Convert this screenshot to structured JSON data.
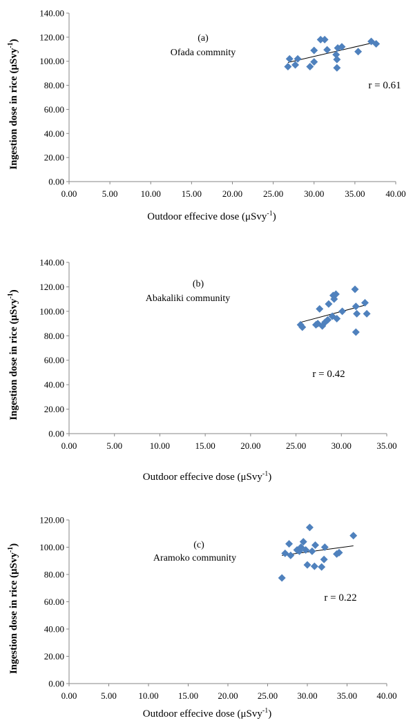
{
  "charts": [
    {
      "panel": "(a)",
      "community": "Ofada commnity",
      "r_label": "r = 0.61",
      "xlabel": "Outdoor effecive dose (μSvy",
      "ylabel": "Ingestion dose in rice (μSvy",
      "unit_sup": "-1",
      "unit_close": ")",
      "xticks": [
        "0.00",
        "5.00",
        "10.00",
        "15.00",
        "20.00",
        "25.00",
        "30.00",
        "35.00",
        "40.00"
      ],
      "yticks": [
        "0.00",
        "20.00",
        "40.00",
        "60.00",
        "80.00",
        "100.00",
        "120.00",
        "140.00"
      ]
    },
    {
      "panel": "(b)",
      "community": "Abakaliki community",
      "r_label": "r = 0.42",
      "xlabel": "Outdoor effecive dose (μSvy",
      "ylabel": "Ingestion dose in rice (μSvy",
      "unit_sup": "-1",
      "unit_close": ")",
      "xticks": [
        "0.00",
        "5.00",
        "10.00",
        "15.00",
        "20.00",
        "25.00",
        "30.00",
        "35.00"
      ],
      "yticks": [
        "0.00",
        "20.00",
        "40.00",
        "60.00",
        "80.00",
        "100.00",
        "120.00",
        "140.00"
      ]
    },
    {
      "panel": "(c)",
      "community": "Aramoko community",
      "r_label": "r = 0.22",
      "xlabel": "Outdoor effecive dose (μSvy",
      "ylabel": "Ingestion dose in rice (μSvy",
      "unit_sup": "-1",
      "unit_close": ")",
      "xticks": [
        "0.00",
        "5.00",
        "10.00",
        "15.00",
        "20.00",
        "25.00",
        "30.00",
        "35.00",
        "40.00"
      ],
      "yticks": [
        "0.00",
        "20.00",
        "40.00",
        "60.00",
        "80.00",
        "100.00",
        "120.00"
      ]
    }
  ],
  "chart_data": [
    {
      "type": "scatter",
      "title": "",
      "xlabel": "Outdoor effecive dose (μSvy-1)",
      "ylabel": "Ingestion dose in rice (μSvy-1)",
      "xlim": [
        0,
        40
      ],
      "ylim": [
        0,
        140
      ],
      "grid": false,
      "marker_color": "#4f81bd",
      "trendline": {
        "x": [
          26.8,
          37.6
        ],
        "y": [
          99,
          116
        ]
      },
      "annotations": [
        "(a)",
        "Ofada commnity",
        "r = 0.61"
      ],
      "points": [
        [
          26.8,
          95.5
        ],
        [
          27.0,
          102.0
        ],
        [
          27.7,
          97.0
        ],
        [
          28.0,
          102.0
        ],
        [
          29.5,
          95.5
        ],
        [
          30.0,
          99.5
        ],
        [
          30.0,
          109.0
        ],
        [
          30.8,
          118.0
        ],
        [
          31.3,
          118.0
        ],
        [
          31.6,
          109.5
        ],
        [
          32.7,
          105.5
        ],
        [
          32.8,
          101.5
        ],
        [
          32.8,
          94.5
        ],
        [
          32.9,
          111.0
        ],
        [
          33.4,
          112.0
        ],
        [
          35.4,
          108.0
        ],
        [
          37.0,
          116.5
        ],
        [
          37.6,
          114.5
        ]
      ]
    },
    {
      "type": "scatter",
      "title": "",
      "xlabel": "Outdoor effecive dose (μSvy-1)",
      "ylabel": "Ingestion dose in rice (μSvy-1)",
      "xlim": [
        0,
        35
      ],
      "ylim": [
        0,
        140
      ],
      "grid": false,
      "marker_color": "#4f81bd",
      "trendline": {
        "x": [
          25.5,
          32.6
        ],
        "y": [
          91,
          105
        ]
      },
      "annotations": [
        "(b)",
        "Abakaliki community",
        "r = 0.42"
      ],
      "points": [
        [
          25.5,
          89.0
        ],
        [
          25.7,
          87.0
        ],
        [
          27.2,
          89.0
        ],
        [
          27.4,
          90.0
        ],
        [
          27.6,
          102.0
        ],
        [
          27.9,
          88.0
        ],
        [
          28.2,
          91.0
        ],
        [
          28.5,
          93.0
        ],
        [
          28.6,
          106.0
        ],
        [
          29.0,
          96.0
        ],
        [
          29.1,
          113.0
        ],
        [
          29.2,
          110.0
        ],
        [
          29.4,
          114.0
        ],
        [
          29.5,
          94.0
        ],
        [
          30.1,
          100.0
        ],
        [
          31.5,
          118.0
        ],
        [
          31.6,
          104.0
        ],
        [
          31.6,
          83.0
        ],
        [
          31.7,
          98.0
        ],
        [
          32.6,
          107.0
        ],
        [
          32.8,
          98.0
        ]
      ]
    },
    {
      "type": "scatter",
      "title": "",
      "xlabel": "Outdoor effecive dose (μSvy-1)",
      "ylabel": "Ingestion dose in rice (μSvy-1)",
      "xlim": [
        0,
        40
      ],
      "ylim": [
        0,
        120
      ],
      "grid": false,
      "marker_color": "#4f81bd",
      "trendline": {
        "x": [
          26.8,
          35.8
        ],
        "y": [
          94,
          101
        ]
      },
      "annotations": [
        "(c)",
        "Aramoko community",
        "r = 0.22"
      ],
      "points": [
        [
          26.8,
          77.5
        ],
        [
          27.2,
          95.5
        ],
        [
          27.7,
          102.5
        ],
        [
          27.9,
          94.0
        ],
        [
          28.7,
          98.0
        ],
        [
          29.0,
          97.0
        ],
        [
          29.2,
          100.0
        ],
        [
          29.5,
          104.0
        ],
        [
          29.8,
          98.0
        ],
        [
          30.0,
          87.0
        ],
        [
          30.3,
          114.5
        ],
        [
          30.6,
          97.0
        ],
        [
          30.9,
          86.0
        ],
        [
          31.0,
          101.5
        ],
        [
          31.8,
          85.5
        ],
        [
          32.1,
          91.0
        ],
        [
          32.2,
          100.0
        ],
        [
          33.7,
          95.0
        ],
        [
          34.0,
          96.0
        ],
        [
          35.8,
          108.5
        ]
      ]
    }
  ]
}
